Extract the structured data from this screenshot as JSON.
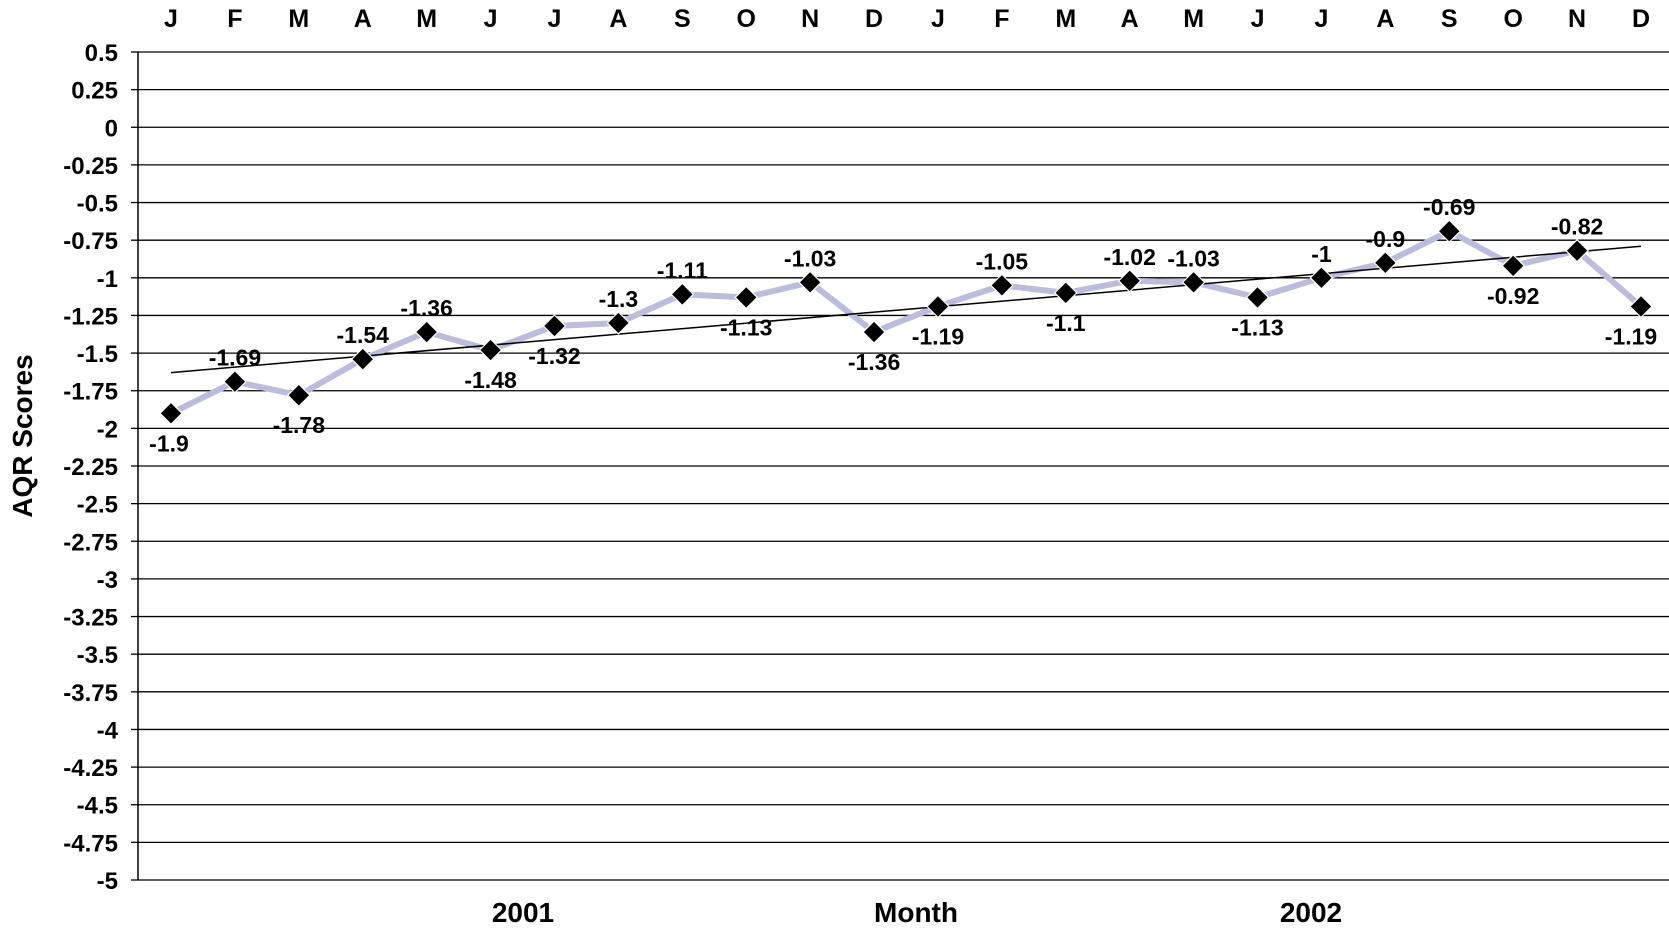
{
  "chart_data": {
    "type": "line",
    "title": "",
    "xlabel": "Month",
    "ylabel": "AQR Scores",
    "ylim": [
      -5,
      0.5
    ],
    "ytick_step": 0.25,
    "y_tick_labels": [
      "0.5",
      "0.25",
      "0",
      "-0.25",
      "-0.5",
      "-0.75",
      "-1",
      "-1.25",
      "-1.5",
      "-1.75",
      "-2",
      "-2.25",
      "-2.5",
      "-2.75",
      "-3",
      "-3.25",
      "-3.5",
      "-3.75",
      "-4",
      "-4.25",
      "-4.5",
      "-4.75",
      "-5"
    ],
    "grid": true,
    "legend": "none",
    "categories": [
      "J",
      "F",
      "M",
      "A",
      "M",
      "J",
      "J",
      "A",
      "S",
      "O",
      "N",
      "D",
      "J",
      "F",
      "M",
      "A",
      "M",
      "J",
      "J",
      "A",
      "S",
      "O",
      "N",
      "D"
    ],
    "year_labels": [
      "2001",
      "2002"
    ],
    "series": [
      {
        "values": [
          -1.9,
          -1.69,
          -1.78,
          -1.54,
          -1.36,
          -1.48,
          -1.32,
          -1.3,
          -1.11,
          -1.13,
          -1.03,
          -1.36,
          -1.19,
          -1.05,
          -1.1,
          -1.02,
          -1.03,
          -1.13,
          -1,
          -0.9,
          -0.69,
          -0.92,
          -0.82,
          -1.19
        ],
        "data_labels": [
          "-1.9",
          "-1.69",
          "-1.78",
          "-1.54",
          "-1.36",
          "-1.48",
          "-1.32",
          "-1.3",
          "-1.11",
          "-1.13",
          "-1.03",
          "-1.36",
          "-1.19",
          "-1.05",
          "-1.1",
          "-1.02",
          "-1.03",
          "-1.13",
          "-1",
          "-0.9",
          "-0.69",
          "-0.92",
          "-0.82",
          "-1.19"
        ],
        "line_color": "#bcbcdc",
        "marker_color": "#000000",
        "marker": "diamond"
      }
    ],
    "trendline": {
      "type": "linear",
      "color": "#000000"
    }
  }
}
